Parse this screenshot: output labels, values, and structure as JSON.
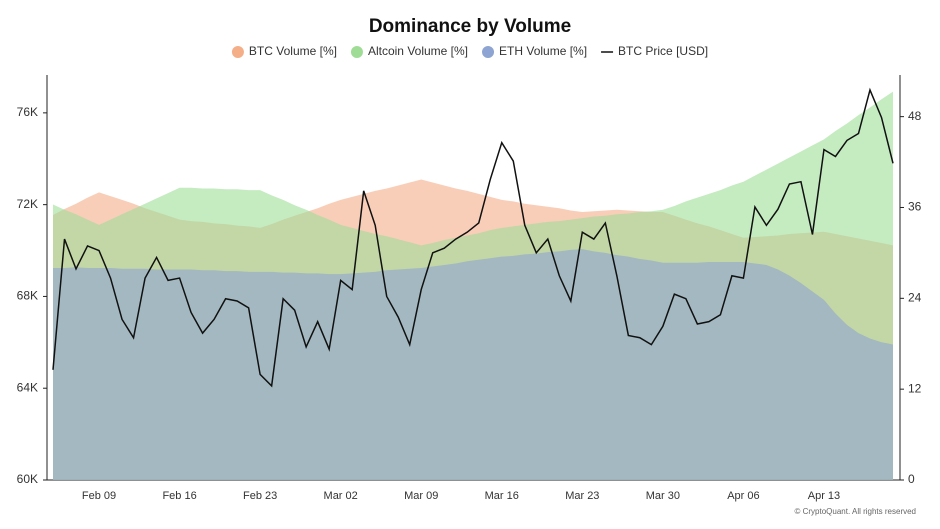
{
  "chart_data": {
    "type": "area",
    "title": "Dominance by Volume",
    "credit": "© CryptoQuant. All rights reserved",
    "categories": [
      null,
      null,
      null,
      null,
      "Feb 09",
      null,
      null,
      null,
      null,
      null,
      null,
      "Feb 16",
      null,
      null,
      null,
      null,
      null,
      null,
      "Feb 23",
      null,
      null,
      null,
      null,
      null,
      null,
      "Mar 02",
      null,
      null,
      null,
      null,
      null,
      null,
      "Mar 09",
      null,
      null,
      null,
      null,
      null,
      null,
      "Mar 16",
      null,
      null,
      null,
      null,
      null,
      null,
      "Mar 23",
      null,
      null,
      null,
      null,
      null,
      null,
      "Mar 30",
      null,
      null,
      null,
      null,
      null,
      null,
      "Apr 06",
      null,
      null,
      null,
      null,
      null,
      null,
      "Apr 13",
      null,
      null,
      null,
      null,
      null,
      null
    ],
    "ylim": [
      60000,
      77650
    ],
    "yticks": [
      {
        "value": 60000,
        "label": "60K"
      },
      {
        "value": 64000,
        "label": "64K"
      },
      {
        "value": 68000,
        "label": "68K"
      },
      {
        "value": 72000,
        "label": "72K"
      },
      {
        "value": 76000,
        "label": "76K"
      }
    ],
    "y2lim": [
      0,
      53.5
    ],
    "y2ticks": [
      0,
      12,
      24,
      36,
      48
    ],
    "series": [
      {
        "name": "BTC Volume [%]",
        "type": "area",
        "axis": "y2",
        "color": "#f4ae88",
        "values": [
          35,
          35.8,
          36.5,
          37.3,
          38,
          37.5,
          37,
          36.5,
          35.9,
          35.4,
          34.9,
          34.4,
          34.2,
          34.1,
          33.9,
          33.8,
          33.6,
          33.5,
          33.3,
          33.8,
          34.4,
          34.9,
          35.4,
          35.9,
          36.5,
          37,
          37.4,
          37.8,
          38.2,
          38.5,
          38.9,
          39.3,
          39.7,
          39.3,
          38.9,
          38.5,
          38.2,
          37.8,
          37.4,
          37,
          36.8,
          36.5,
          36.3,
          36.1,
          35.9,
          35.6,
          35.4,
          35.5,
          35.6,
          35.7,
          35.6,
          35.5,
          35.4,
          35.4,
          34.9,
          34.4,
          33.9,
          33.5,
          33,
          32.5,
          32,
          32.1,
          32.2,
          32.3,
          32.5,
          32.6,
          32.7,
          32.8,
          32.5,
          32.2,
          31.9,
          31.6,
          31.3,
          31
        ]
      },
      {
        "name": "Altcoin Volume [%]",
        "type": "area",
        "axis": "y2",
        "color": "#9fdd97",
        "values": [
          36.4,
          35.7,
          35.1,
          34.4,
          33.7,
          34.4,
          35.1,
          35.8,
          36.5,
          37.2,
          37.9,
          38.6,
          38.6,
          38.5,
          38.5,
          38.4,
          38.4,
          38.3,
          38.3,
          37.6,
          37,
          36.3,
          35.7,
          35,
          34.4,
          33.7,
          33.3,
          32.9,
          32.5,
          32.2,
          31.8,
          31.4,
          31,
          31.3,
          31.7,
          32,
          32.3,
          32.6,
          33,
          33.3,
          33.5,
          33.7,
          33.9,
          34.1,
          34.2,
          34.4,
          34.6,
          34.8,
          34.9,
          35.1,
          35.2,
          35.4,
          35.5,
          35.7,
          36.2,
          36.8,
          37.3,
          37.8,
          38.3,
          38.9,
          39.4,
          40.2,
          41,
          41.8,
          42.6,
          43.4,
          44.2,
          45,
          46.1,
          47.1,
          48.2,
          49.2,
          50.3,
          51.3
        ]
      },
      {
        "name": "ETH Volume [%]",
        "type": "area",
        "axis": "y2",
        "color": "#8ea4d2",
        "values": [
          28,
          28,
          28.1,
          28,
          28,
          28,
          27.9,
          27.9,
          27.9,
          27.8,
          27.8,
          27.8,
          27.8,
          27.7,
          27.7,
          27.6,
          27.6,
          27.5,
          27.5,
          27.5,
          27.4,
          27.4,
          27.3,
          27.3,
          27.2,
          27.2,
          27.3,
          27.4,
          27.5,
          27.7,
          27.8,
          27.9,
          28,
          28.2,
          28.4,
          28.6,
          28.9,
          29.1,
          29.3,
          29.5,
          29.6,
          29.8,
          29.9,
          30.1,
          30.2,
          30.4,
          30.5,
          30.2,
          30,
          29.7,
          29.5,
          29.2,
          29,
          28.7,
          28.7,
          28.7,
          28.7,
          28.8,
          28.8,
          28.8,
          28.8,
          28.6,
          28.4,
          27.8,
          27,
          26,
          24.9,
          23.8,
          22,
          20.5,
          19.4,
          18.7,
          18.2,
          17.9
        ]
      },
      {
        "name": "BTC Price [USD]",
        "type": "line",
        "color": "#111111",
        "values": [
          64800,
          70500,
          69200,
          70200,
          70000,
          68800,
          67000,
          66200,
          68800,
          69700,
          68700,
          68800,
          67300,
          66400,
          67000,
          67900,
          67800,
          67500,
          64600,
          64100,
          67900,
          67400,
          65800,
          66900,
          65700,
          68700,
          68300,
          72600,
          71100,
          68000,
          67100,
          65900,
          68300,
          69900,
          70100,
          70500,
          70800,
          71200,
          73100,
          74700,
          73900,
          71100,
          69900,
          70500,
          68900,
          67800,
          70800,
          70500,
          71200,
          68900,
          66300,
          66200,
          65900,
          66700,
          68100,
          67900,
          66800,
          66900,
          67200,
          68900,
          68800,
          71900,
          71100,
          71800,
          72900,
          73000,
          70700,
          74400,
          74100,
          74800,
          75100,
          77000,
          75800,
          73800
        ]
      }
    ]
  }
}
